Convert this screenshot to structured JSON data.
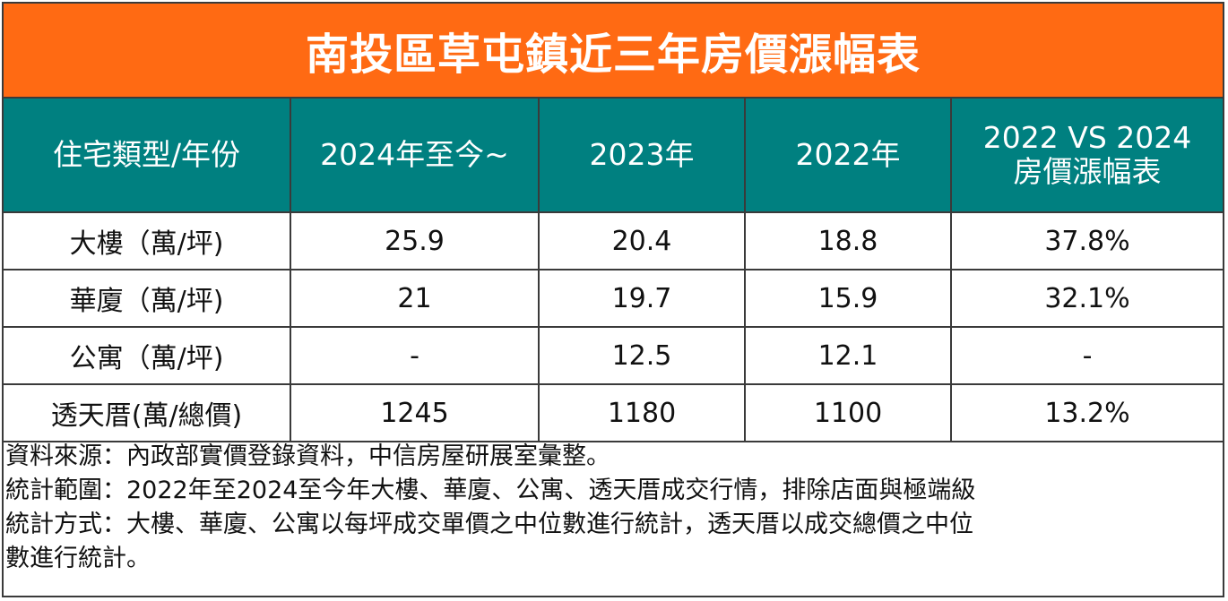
{
  "title": "南投區草屯鎮近三年房價漲幅表",
  "table": {
    "headers": [
      {
        "lines": [
          "住宅類型/年份"
        ]
      },
      {
        "lines": [
          "2024年至今~"
        ]
      },
      {
        "lines": [
          "2023年"
        ]
      },
      {
        "lines": [
          "2022年"
        ]
      },
      {
        "lines": [
          "2022 VS 2024",
          "房價漲幅表"
        ]
      }
    ],
    "rows": [
      [
        "大樓（萬/坪)",
        "25.9",
        "20.4",
        "18.8",
        "37.8%"
      ],
      [
        "華廈（萬/坪)",
        "21",
        "19.7",
        "15.9",
        "32.1%"
      ],
      [
        "公寓（萬/坪)",
        "-",
        "12.5",
        "12.1",
        "-"
      ],
      [
        "透天厝(萬/總價)",
        "1245",
        "1180",
        "1100",
        "13.2%"
      ]
    ]
  },
  "notes": [
    "資料來源：內政部實價登錄資料，中信房屋研展室彙整。",
    "統計範圍：2022年至2024至今年大樓、華廈、公寓、透天厝成交行情，排除店面與極端級",
    "統計方式：大樓、華廈、公寓以每坪成交單價之中位數進行統計，透天厝以成交總價之中位",
    "數進行統計。"
  ],
  "colors": {
    "title_bg": "#ff6a13",
    "header_bg": "#008080",
    "border": "#3a3a3a"
  },
  "chart_data": {
    "type": "table",
    "title": "南投區草屯鎮近三年房價漲幅表",
    "columns": [
      "住宅類型/年份",
      "2024年至今~",
      "2023年",
      "2022年",
      "2022 VS 2024 房價漲幅表"
    ],
    "categories": [
      "大樓（萬/坪)",
      "華廈（萬/坪)",
      "公寓（萬/坪)",
      "透天厝(萬/總價)"
    ],
    "series": [
      {
        "name": "2024年至今~",
        "values": [
          25.9,
          21,
          null,
          1245
        ]
      },
      {
        "name": "2023年",
        "values": [
          20.4,
          19.7,
          12.5,
          1180
        ]
      },
      {
        "name": "2022年",
        "values": [
          18.8,
          15.9,
          12.1,
          1100
        ]
      },
      {
        "name": "2022 VS 2024 房價漲幅表",
        "values": [
          "37.8%",
          "32.1%",
          "-",
          "13.2%"
        ]
      }
    ]
  }
}
